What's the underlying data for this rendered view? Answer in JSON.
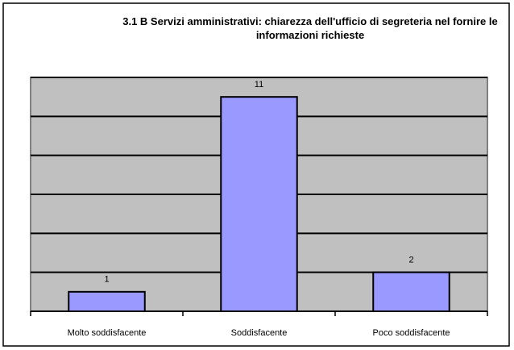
{
  "chart_data": {
    "type": "bar",
    "title": "3.1 B Servizi amministrativi: chiarezza dell'ufficio di segreteria nel fornire le informazioni richieste",
    "categories": [
      "Molto soddisfacente",
      "Soddisfacente",
      "Poco soddisfacente"
    ],
    "values": [
      1,
      11,
      2
    ],
    "color": "#9999ff",
    "ylim": [
      0,
      12
    ],
    "yticks": [
      0,
      2,
      4,
      6,
      8,
      10,
      12
    ],
    "grid": true
  }
}
